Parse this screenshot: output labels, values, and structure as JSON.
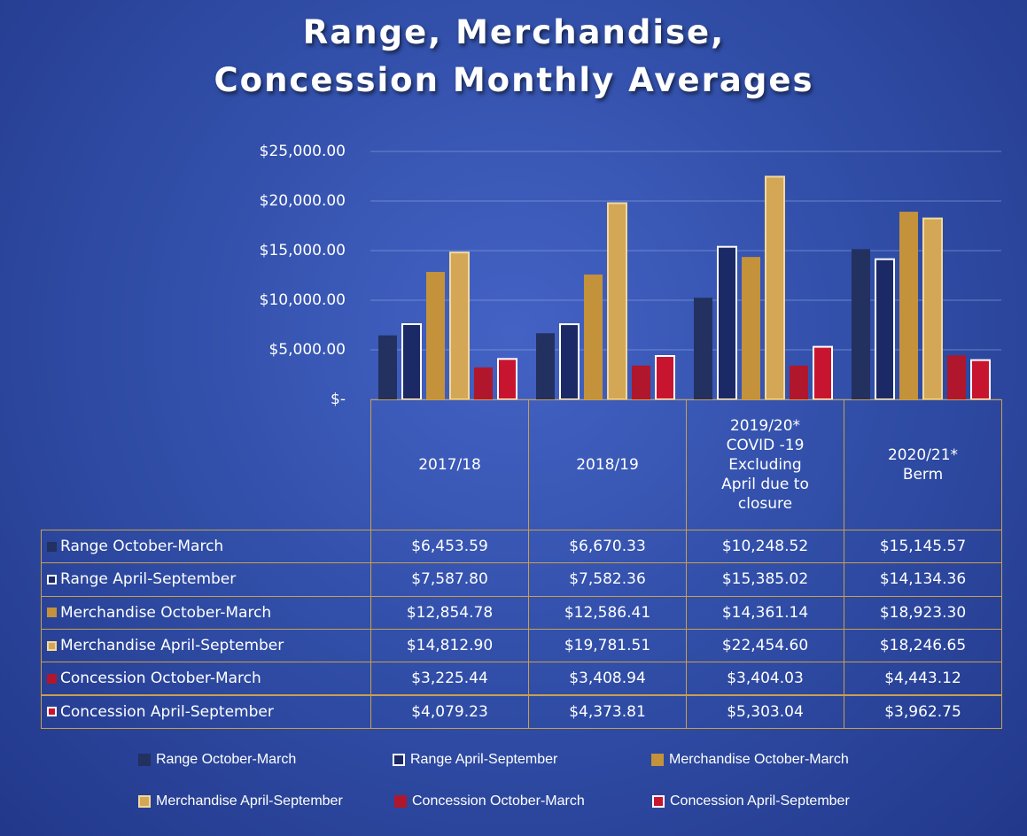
{
  "chart_data": {
    "type": "bar",
    "title": "Range, Merchandise, Concession Monthly Averages",
    "categories": [
      "2017/18",
      "2018/19",
      "2019/20* COVID -19 Excluding April due to closure",
      "2020/21* Berm"
    ],
    "ylim": [
      0,
      25000
    ],
    "yticks": [
      {
        "value": 0,
        "label": "$-"
      },
      {
        "value": 5000,
        "label": "$5,000.00"
      },
      {
        "value": 10000,
        "label": "$10,000.00"
      },
      {
        "value": 15000,
        "label": "$15,000.00"
      },
      {
        "value": 20000,
        "label": "$20,000.00"
      },
      {
        "value": 25000,
        "label": "$25,000.00"
      }
    ],
    "grid": true,
    "legend": "bottom",
    "series": [
      {
        "name": "Range October-March",
        "color": "#22315f",
        "values": [
          6453.59,
          6670.33,
          10248.52,
          15145.57
        ],
        "value_labels": [
          "$6,453.59",
          "$6,670.33",
          "$10,248.52",
          "$15,145.57"
        ]
      },
      {
        "name": "Range April-September",
        "color": "#1b2a66",
        "values": [
          7587.8,
          7582.36,
          15385.02,
          14134.36
        ],
        "value_labels": [
          "$7,587.80",
          "$7,582.36",
          "$15,385.02",
          "$14,134.36"
        ]
      },
      {
        "name": "Merchandise October-March",
        "color": "#c4923a",
        "values": [
          12854.78,
          12586.41,
          14361.14,
          18923.3
        ],
        "value_labels": [
          "$12,854.78",
          "$12,586.41",
          "$14,361.14",
          "$18,923.30"
        ]
      },
      {
        "name": "Merchandise April-September",
        "color": "#d3a756",
        "values": [
          14812.9,
          19781.51,
          22454.6,
          18246.65
        ],
        "value_labels": [
          "$14,812.90",
          "$19,781.51",
          "$22,454.60",
          "$18,246.65"
        ]
      },
      {
        "name": "Concession October-March",
        "color": "#b0172c",
        "values": [
          3225.44,
          3408.94,
          3404.03,
          4443.12
        ],
        "value_labels": [
          "$3,225.44",
          "$3,408.94",
          "$3,404.03",
          "$4,443.12"
        ]
      },
      {
        "name": "Concession April-September",
        "color": "#c8152f",
        "values": [
          4079.23,
          4373.81,
          5303.04,
          3962.75
        ],
        "value_labels": [
          "$4,079.23",
          "$4,373.81",
          "$5,303.04",
          "$3,962.75"
        ]
      }
    ]
  }
}
